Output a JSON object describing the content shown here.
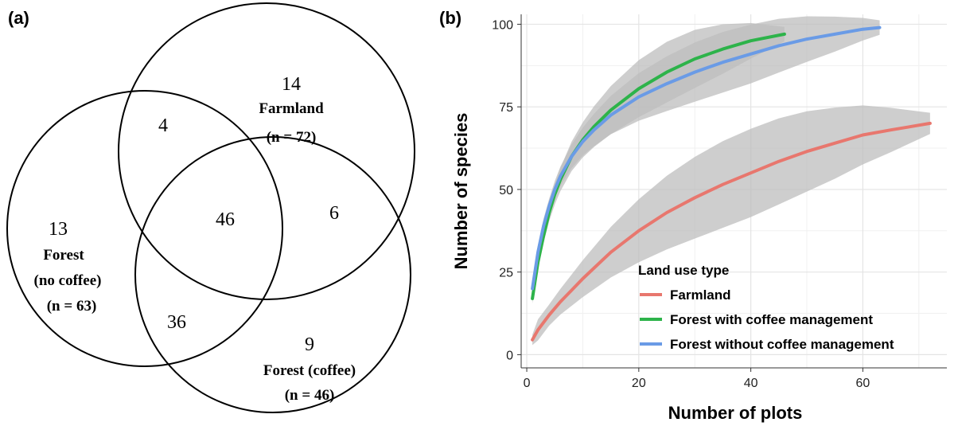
{
  "venn": {
    "panel_label": "(a)",
    "sets": [
      {
        "name": "Farmland",
        "n": "(n = 72)"
      },
      {
        "name": "Forest",
        "name2": "(no coffee)",
        "n": "(n = 63)"
      },
      {
        "name": "Forest (coffee)",
        "n": "(n = 46)"
      }
    ],
    "regions": {
      "farmland_only": "14",
      "forest_no_coffee_only": "13",
      "forest_coffee_only": "9",
      "farmland_and_forest_no_coffee": "4",
      "farmland_and_forest_coffee": "6",
      "forest_no_coffee_and_forest_coffee": "36",
      "all_three": "46"
    }
  },
  "chart_data": {
    "panel_label": "(b)",
    "type": "line",
    "xlabel": "Number of plots",
    "ylabel": "Number of species",
    "xlim": [
      -1,
      75
    ],
    "ylim": [
      -4,
      103
    ],
    "xticks": [
      0,
      20,
      40,
      60
    ],
    "yticks": [
      0,
      25,
      50,
      75,
      100
    ],
    "grid": true,
    "legend": {
      "title": "Land use type",
      "position": "bottom-right"
    },
    "series": [
      {
        "name": "Farmland",
        "color": "#e8776e",
        "ci_color": "#bdbdbd",
        "x": [
          1,
          2,
          4,
          6,
          8,
          10,
          15,
          20,
          25,
          30,
          35,
          40,
          45,
          50,
          55,
          60,
          65,
          72
        ],
        "y": [
          4.5,
          7.5,
          12,
          16,
          19.5,
          23,
          31,
          37.5,
          43,
          47.5,
          51.5,
          55,
          58.5,
          61.5,
          64,
          66.5,
          68,
          70
        ]
      },
      {
        "name": "Forest with coffee management",
        "color": "#2db34a",
        "ci_color": "#bdbdbd",
        "x": [
          1,
          2,
          3,
          4,
          5,
          6,
          8,
          10,
          12,
          15,
          20,
          25,
          30,
          35,
          40,
          46
        ],
        "y": [
          17,
          28,
          36,
          43,
          48.5,
          53,
          60,
          65,
          69,
          74,
          80.5,
          85.5,
          89.5,
          92.5,
          95,
          97
        ]
      },
      {
        "name": "Forest without coffee management",
        "color": "#6a9be6",
        "ci_color": "#bdbdbd",
        "x": [
          1,
          2,
          3,
          4,
          5,
          6,
          8,
          10,
          12,
          15,
          20,
          25,
          30,
          35,
          40,
          45,
          50,
          55,
          60,
          63
        ],
        "y": [
          20,
          31,
          39,
          45,
          50,
          54,
          60,
          64.5,
          68,
          72.5,
          78,
          82,
          85.5,
          88.5,
          91,
          93.5,
          95.5,
          97,
          98.5,
          99
        ]
      }
    ]
  }
}
